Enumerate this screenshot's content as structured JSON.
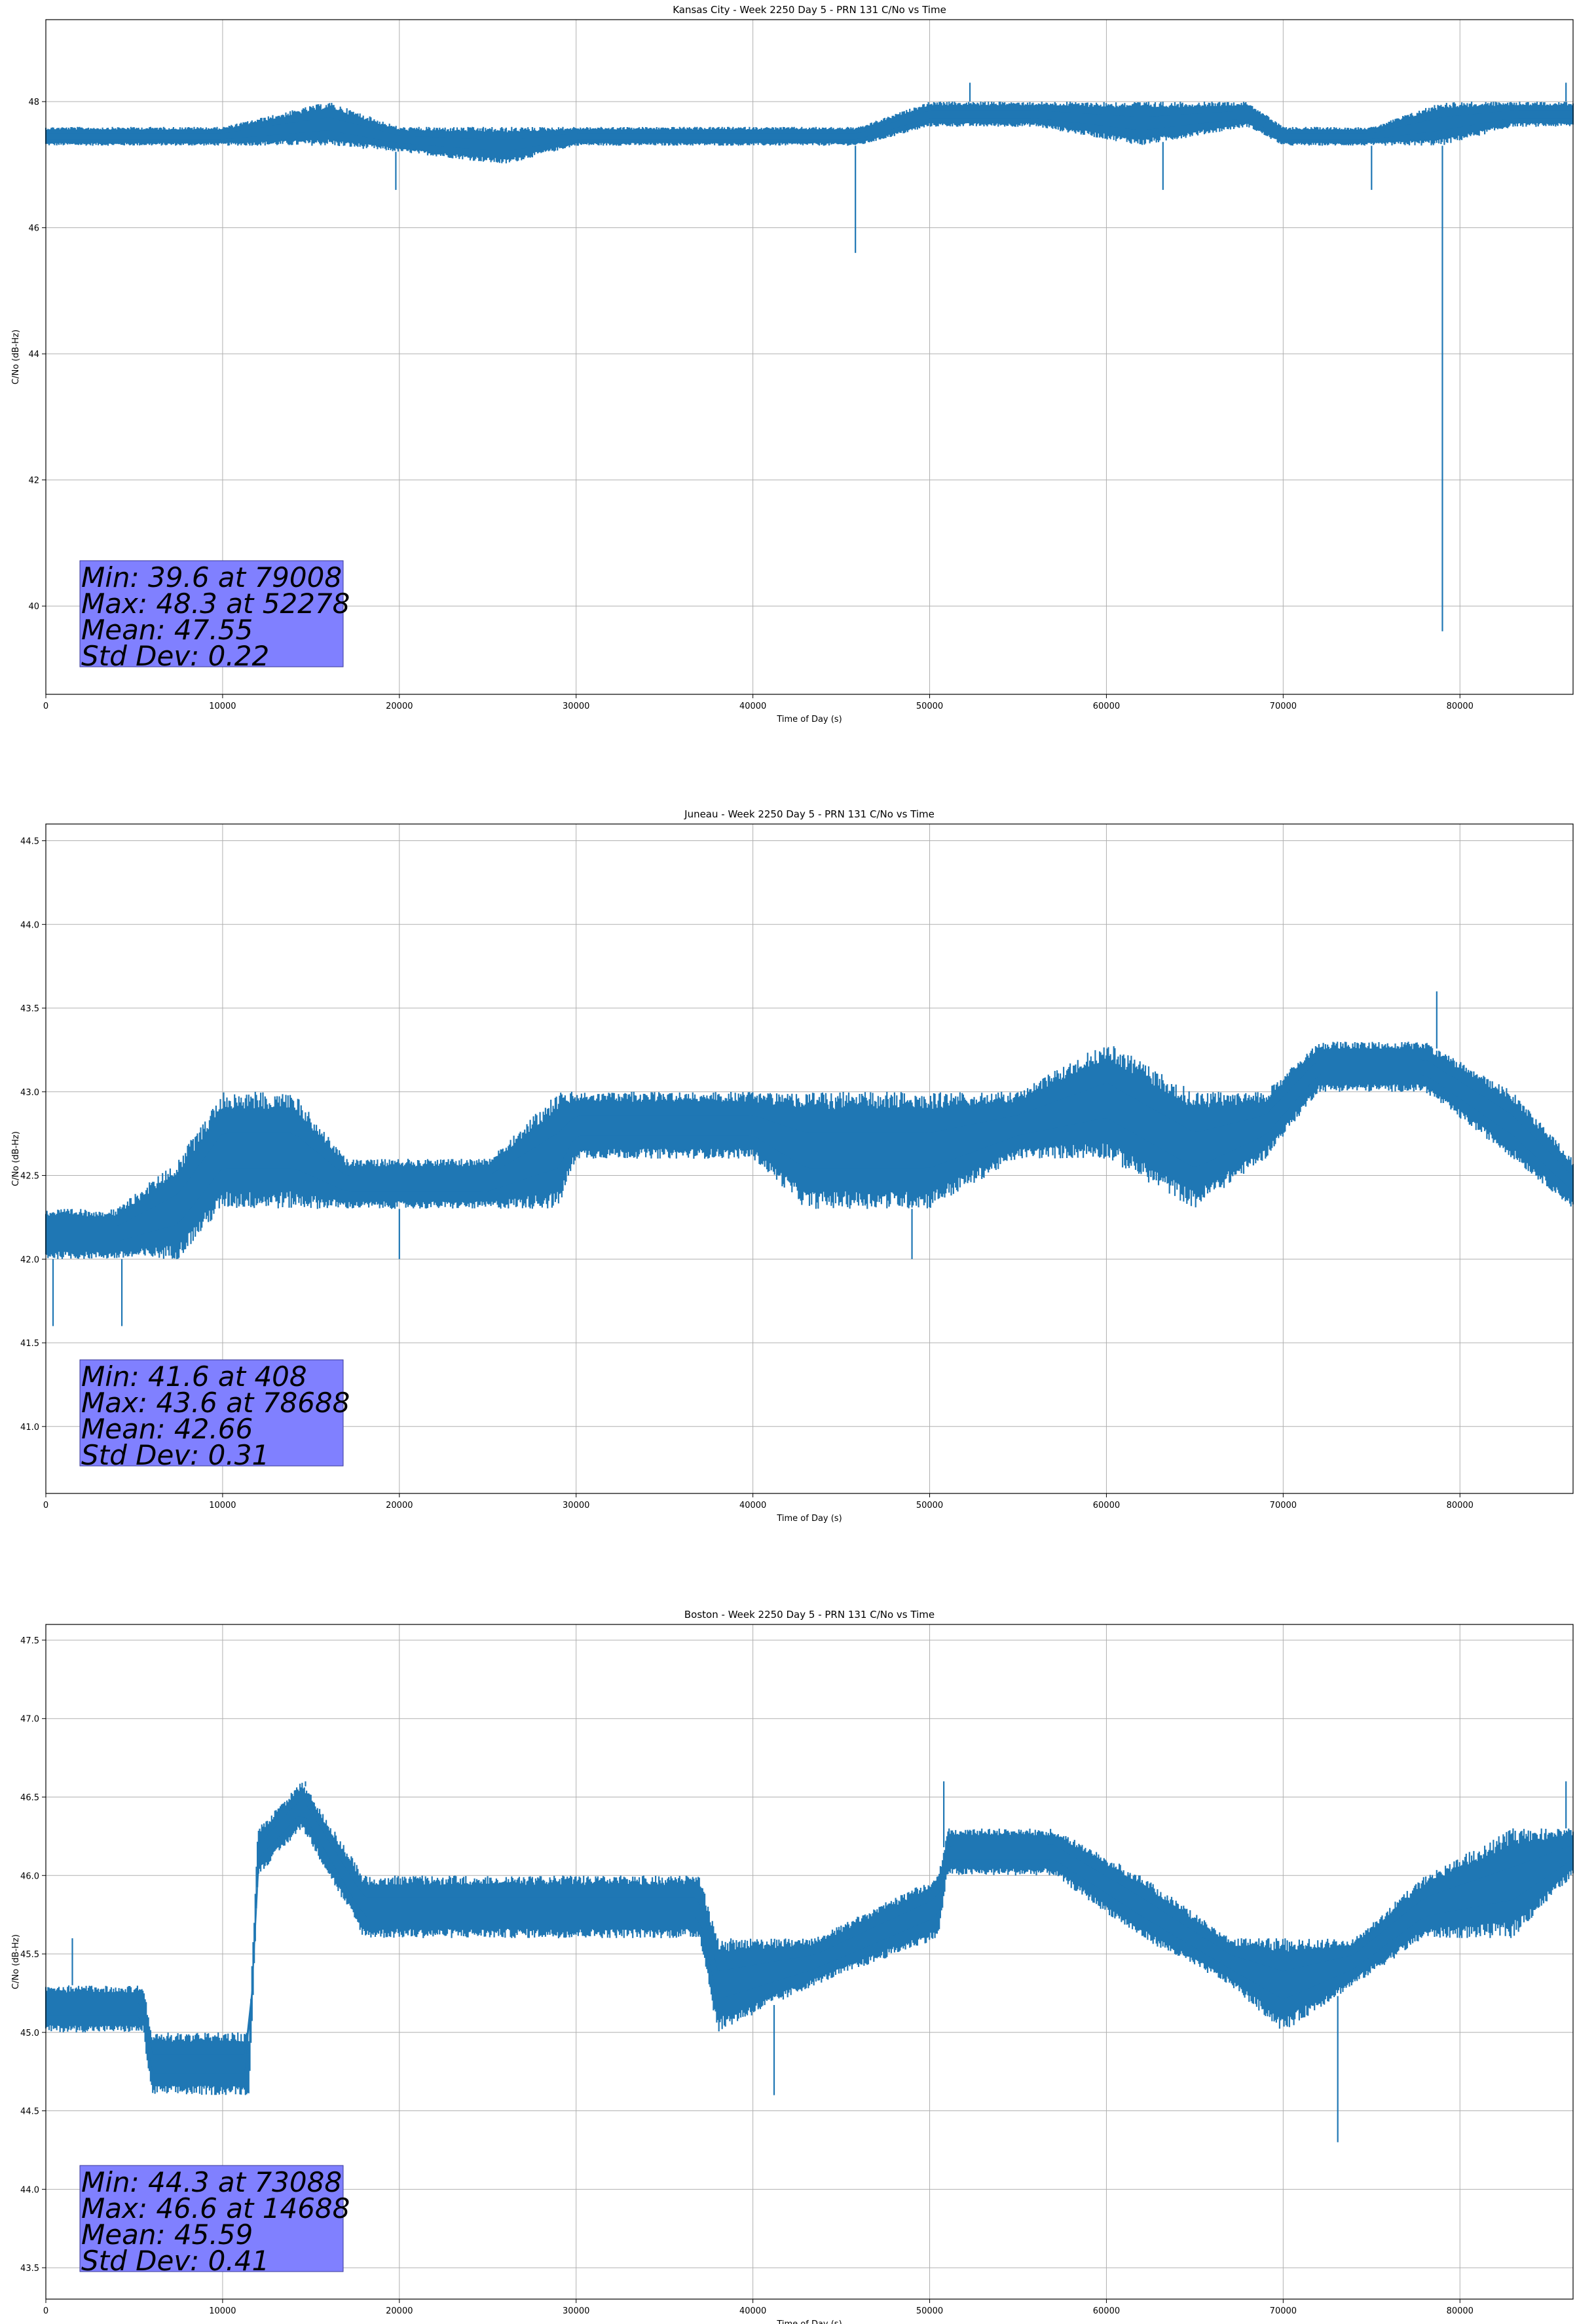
{
  "chart_data": [
    {
      "type": "line",
      "title": "Kansas City - Week 2250 Day 5 - PRN 131 C/No vs Time",
      "xlabel": "Time of Day (s)",
      "ylabel": "C/No (dB-Hz)",
      "xlim": [
        0,
        86400
      ],
      "ylim": [
        38.6,
        49.3
      ],
      "xticks": [
        0,
        10000,
        20000,
        30000,
        40000,
        50000,
        60000,
        70000,
        80000
      ],
      "yticks": [
        40,
        42,
        44,
        46,
        48
      ],
      "grid": true,
      "color": "#1f77b4",
      "series": [
        {
          "name": "C/No",
          "x": [
            0,
            4000,
            10000,
            16000,
            20000,
            26000,
            30000,
            36000,
            42000,
            46000,
            50000,
            56000,
            62000,
            68000,
            70000,
            75000,
            79000,
            83000,
            86400
          ],
          "low": [
            47.3,
            47.3,
            47.3,
            47.3,
            47.2,
            47.0,
            47.3,
            47.3,
            47.3,
            47.3,
            47.6,
            47.6,
            47.3,
            47.6,
            47.3,
            47.3,
            47.3,
            47.6,
            47.6
          ],
          "high": [
            47.6,
            47.6,
            47.6,
            48.0,
            47.6,
            47.6,
            47.6,
            47.6,
            47.6,
            47.6,
            48.0,
            48.0,
            48.0,
            48.0,
            47.6,
            47.6,
            48.0,
            48.0,
            48.0
          ]
        }
      ],
      "spikes": [
        [
          19800,
          46.6
        ],
        [
          45800,
          45.6
        ],
        [
          52278,
          48.3
        ],
        [
          63200,
          46.6
        ],
        [
          75000,
          46.6
        ],
        [
          79008,
          39.6
        ],
        [
          86000,
          48.3
        ]
      ],
      "stats": [
        "Min: 39.6 at 79008",
        "Max: 48.3 at 52278",
        "Mean: 47.55",
        "Std Dev: 0.22"
      ]
    },
    {
      "type": "line",
      "title": "Juneau - Week 2250 Day 5 - PRN 131 C/No vs Time",
      "xlabel": "Time of Day (s)",
      "ylabel": "C/No (dB-Hz)",
      "xlim": [
        0,
        86400
      ],
      "ylim": [
        40.6,
        44.6
      ],
      "xticks": [
        0,
        10000,
        20000,
        30000,
        40000,
        50000,
        60000,
        70000,
        80000
      ],
      "yticks": [
        41.0,
        41.5,
        42.0,
        42.5,
        43.0,
        43.5,
        44.0,
        44.5
      ],
      "grid": true,
      "color": "#1f77b4",
      "series": [
        {
          "name": "C/No",
          "x": [
            0,
            4000,
            7500,
            10000,
            14000,
            17000,
            20000,
            25000,
            29000,
            30000,
            40000,
            43000,
            50000,
            55000,
            60000,
            65000,
            69000,
            72000,
            78000,
            83000,
            86400
          ],
          "low": [
            42.0,
            42.0,
            42.0,
            42.3,
            42.3,
            42.3,
            42.3,
            42.3,
            42.3,
            42.6,
            42.6,
            42.3,
            42.3,
            42.6,
            42.6,
            42.3,
            42.6,
            43.0,
            43.0,
            42.6,
            42.3
          ],
          "high": [
            42.3,
            42.3,
            42.6,
            43.0,
            43.0,
            42.6,
            42.6,
            42.6,
            43.0,
            43.0,
            43.0,
            43.0,
            43.0,
            43.0,
            43.3,
            43.0,
            43.0,
            43.3,
            43.3,
            43.0,
            42.6
          ]
        }
      ],
      "spikes": [
        [
          408,
          41.6
        ],
        [
          4300,
          41.6
        ],
        [
          20000,
          42.0
        ],
        [
          49000,
          42.0
        ],
        [
          78688,
          43.6
        ]
      ],
      "stats": [
        "Min: 41.6 at 408",
        "Max: 43.6 at 78688",
        "Mean: 42.66",
        "Std Dev: 0.31"
      ]
    },
    {
      "type": "line",
      "title": "Boston - Week 2250 Day 5 - PRN 131 C/No vs Time",
      "xlabel": "Time of Day (s)",
      "ylabel": "C/No (dB-Hz)",
      "xlim": [
        0,
        86400
      ],
      "ylim": [
        43.3,
        47.6
      ],
      "xticks": [
        0,
        10000,
        20000,
        30000,
        40000,
        50000,
        60000,
        70000,
        80000
      ],
      "yticks": [
        43.5,
        44.0,
        44.5,
        45.0,
        45.5,
        46.0,
        46.5,
        47.0,
        47.5
      ],
      "grid": true,
      "color": "#1f77b4",
      "series": [
        {
          "name": "C/No",
          "x": [
            0,
            5500,
            6000,
            11500,
            12000,
            14500,
            18000,
            20000,
            26000,
            32000,
            37000,
            38000,
            43500,
            50500,
            51000,
            57000,
            62000,
            67000,
            70000,
            74000,
            78000,
            83000,
            86400
          ],
          "low": [
            45.0,
            45.0,
            44.6,
            44.6,
            46.0,
            46.3,
            45.6,
            45.6,
            45.6,
            45.6,
            45.6,
            45.0,
            45.3,
            45.6,
            46.0,
            46.0,
            45.6,
            45.3,
            45.0,
            45.3,
            45.6,
            45.6,
            46.0
          ],
          "high": [
            45.3,
            45.3,
            45.0,
            45.0,
            46.3,
            46.6,
            46.0,
            46.0,
            46.0,
            46.0,
            46.0,
            45.6,
            45.6,
            46.0,
            46.3,
            46.3,
            46.0,
            45.6,
            45.6,
            45.6,
            46.0,
            46.3,
            46.3
          ]
        }
      ],
      "spikes": [
        [
          1500,
          45.6
        ],
        [
          14688,
          46.6
        ],
        [
          41200,
          44.6
        ],
        [
          50800,
          46.6
        ],
        [
          73088,
          44.3
        ],
        [
          86000,
          46.6
        ]
      ],
      "stats": [
        "Min: 44.3 at 73088",
        "Max: 46.6 at 14688",
        "Mean: 45.59",
        "Std Dev: 0.41"
      ]
    }
  ]
}
